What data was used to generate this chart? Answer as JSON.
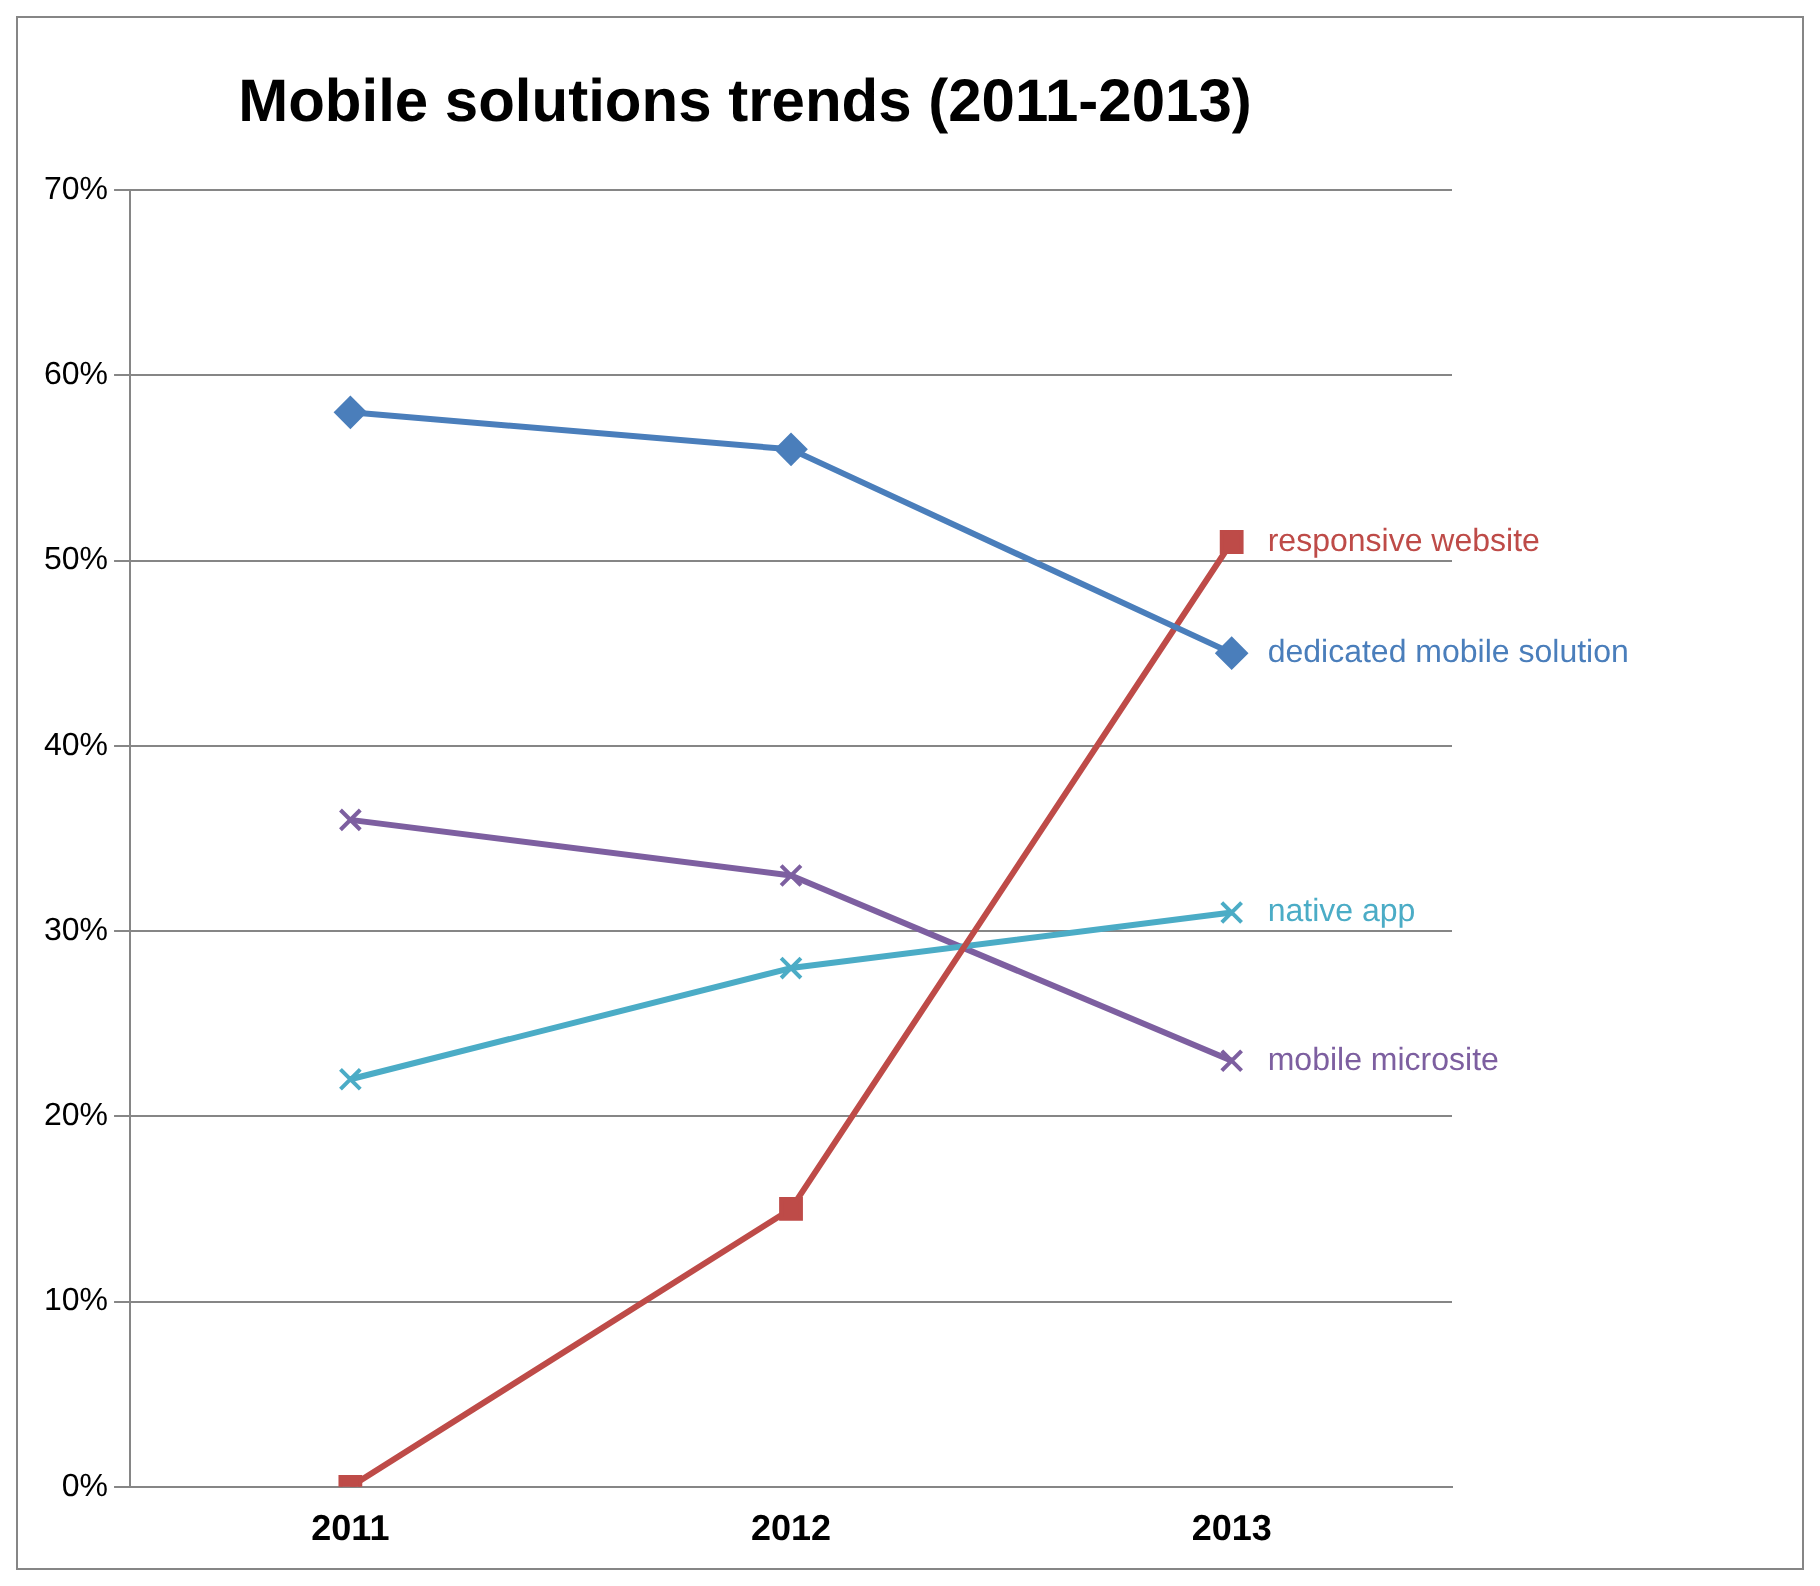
{
  "chart_data": {
    "type": "line",
    "title": "Mobile solutions trends (2011-2013)",
    "categories": [
      "2011",
      "2012",
      "2013"
    ],
    "series": [
      {
        "name": "dedicated mobile solution",
        "color": "#4a7ebb",
        "marker": "diamond",
        "values": [
          58,
          56,
          45
        ]
      },
      {
        "name": "responsive website",
        "color": "#be4b48",
        "marker": "square",
        "values": [
          0,
          15,
          51
        ]
      },
      {
        "name": "native app",
        "color": "#4bacc6",
        "marker": "cross",
        "values": [
          22,
          28,
          31
        ]
      },
      {
        "name": "mobile microsite",
        "color": "#7d5fa0",
        "marker": "cross",
        "values": [
          36,
          33,
          23
        ]
      }
    ],
    "ylim": [
      0,
      70
    ],
    "yticks": [
      {
        "value": 0,
        "label": "0%"
      },
      {
        "value": 10,
        "label": "10%"
      },
      {
        "value": 20,
        "label": "20%"
      },
      {
        "value": 30,
        "label": "30%"
      },
      {
        "value": 40,
        "label": "40%"
      },
      {
        "value": 50,
        "label": "50%"
      },
      {
        "value": 60,
        "label": "60%"
      },
      {
        "value": 70,
        "label": "70%"
      }
    ],
    "grid": "y",
    "legend": false
  }
}
